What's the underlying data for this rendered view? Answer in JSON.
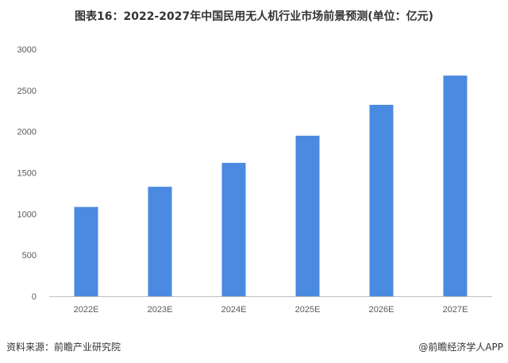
{
  "header": {
    "title": "图表16：2022-2027年中国民用无人机行业市场前景预测(单位：亿元)"
  },
  "footer": {
    "source": "资料来源：前瞻产业研究院",
    "brand": "@前瞻经济学人APP"
  },
  "colors": {
    "bar": "#4a8ae0",
    "axis": "#bfbfbf",
    "text": "#595959"
  },
  "chart_data": {
    "type": "bar",
    "title": "图表16：2022-2027年中国民用无人机行业市场前景预测(单位：亿元)",
    "xlabel": "",
    "ylabel": "",
    "categories": [
      "2022E",
      "2023E",
      "2024E",
      "2025E",
      "2026E",
      "2027E"
    ],
    "values": [
      1085,
      1330,
      1620,
      1950,
      2325,
      2680
    ],
    "ylim": [
      0,
      3000
    ],
    "yticks": [
      "0",
      "500",
      "1000",
      "1500",
      "2000",
      "2500",
      "3000"
    ],
    "grid": false,
    "legend": "none"
  }
}
